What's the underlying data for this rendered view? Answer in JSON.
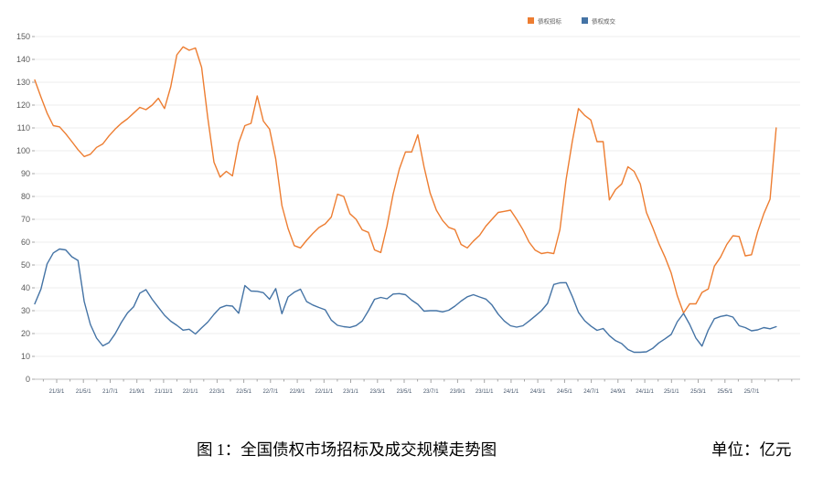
{
  "figure": {
    "caption": "图 1：全国债权市场招标及成交规模走势图",
    "unit_label": "单位：亿元"
  },
  "chart_data": {
    "type": "line",
    "title": "",
    "legend_position": "top",
    "grid": true,
    "x_axis": {
      "unit": "date (yy/m/d)",
      "note": "x encoded as months since 2021-01-01; labeled ticks every 2 months, minor ticks monthly",
      "tick_months_since_2021_01": [
        2,
        4,
        6,
        8,
        10,
        12,
        14,
        16,
        18,
        20,
        22,
        24,
        26,
        28,
        30,
        32,
        34,
        36,
        38,
        40,
        42,
        44,
        46,
        48,
        50,
        52,
        54
      ],
      "tick_labels": [
        "21/3/1",
        "21/5/1",
        "21/7/1",
        "21/9/1",
        "21/11/1",
        "22/1/1",
        "22/3/1",
        "22/5/1",
        "22/7/1",
        "22/9/1",
        "22/11/1",
        "23/1/1",
        "23/3/1",
        "23/5/1",
        "23/7/1",
        "23/9/1",
        "23/11/1",
        "24/1/1",
        "24/3/1",
        "24/5/1",
        "24/7/1",
        "24/9/1",
        "24/11/1",
        "25/1/1",
        "25/3/1",
        "25/5/1",
        "25/7/1"
      ]
    },
    "y_axis": {
      "min": 0,
      "max": 150,
      "tick_step": 10,
      "unit": "亿元",
      "tick_labels": [
        "0",
        "10",
        "20",
        "30",
        "40",
        "50",
        "60",
        "70",
        "80",
        "90",
        "100",
        "110",
        "120",
        "130",
        "140",
        "150"
      ]
    },
    "series": [
      {
        "name": "债权招标",
        "color": "#ED7D31",
        "t_start_months": 0.36,
        "t_step_months": 0.4623,
        "values": [
          131,
          123.5,
          116.5,
          111,
          110.5,
          107.5,
          104,
          100.5,
          97.5,
          98.5,
          101.5,
          103,
          106.5,
          109.5,
          112,
          114,
          116.5,
          119,
          118,
          120,
          123,
          118.5,
          128,
          142,
          145.5,
          144,
          145,
          136.5,
          114.5,
          95,
          88.5,
          91,
          89,
          103.5,
          111,
          112,
          124,
          113,
          109.5,
          96.5,
          76,
          66,
          58.5,
          57.5,
          60.8,
          63.8,
          66.4,
          68,
          71,
          81,
          80,
          72.5,
          70,
          65.4,
          64.3,
          56.6,
          55.5,
          67,
          81,
          92,
          99.5,
          99.5,
          107,
          93,
          81.5,
          74,
          69.5,
          66.5,
          65.5,
          59,
          57.5,
          60.5,
          63,
          67,
          70,
          73,
          73.5,
          74,
          70,
          65.5,
          60,
          56.5,
          55,
          55.5,
          55,
          65.5,
          87.5,
          104,
          118.5,
          115.5,
          113.5,
          104,
          104,
          78.5,
          83,
          85.5,
          93,
          91,
          85.5,
          73,
          66.5,
          59.5,
          53.5,
          46.5,
          36.5,
          29,
          33,
          33,
          38,
          39.5,
          49.5,
          53.5,
          59,
          62.8,
          62.5,
          54,
          54.5,
          64.5,
          72.5,
          78.8,
          110
        ]
      },
      {
        "name": "债权成交",
        "color": "#4473A5",
        "t_start_months": 0.36,
        "t_step_months": 0.4623,
        "values": [
          33,
          39.5,
          50.5,
          55.3,
          57,
          56.6,
          53.6,
          52,
          34,
          24,
          18,
          14.6,
          16,
          19.9,
          24.8,
          29,
          31.7,
          37.7,
          39.2,
          35,
          31.5,
          28,
          25.4,
          23.6,
          21.5,
          21.9,
          19.8,
          22.5,
          25,
          28.4,
          31.3,
          32.3,
          32,
          28.9,
          41,
          38.6,
          38.5,
          37.9,
          35,
          39.7,
          28.7,
          36,
          38.1,
          39.4,
          34,
          32.5,
          31.4,
          30.4,
          25.9,
          23.6,
          23,
          22.7,
          23.5,
          25.5,
          30,
          35,
          35.8,
          35.2,
          37.3,
          37.5,
          37,
          34.6,
          32.8,
          29.8,
          30,
          30,
          29.5,
          30.2,
          32,
          34.2,
          36.1,
          37,
          36,
          35.1,
          32.5,
          28.5,
          25.5,
          23.4,
          22.8,
          23.4,
          25.5,
          27.7,
          30,
          33.2,
          41.5,
          42.2,
          42.3,
          36.3,
          29.3,
          25.6,
          23.3,
          21.4,
          22.2,
          19.1,
          16.9,
          15.6,
          13,
          11.8,
          11.8,
          12,
          13.5,
          15.9,
          17.7,
          19.6,
          25.2,
          28.8,
          24,
          18,
          14.5,
          21.5,
          26.5,
          27.5,
          28,
          27.2,
          23.4,
          22.6,
          21.2,
          21.6,
          22.6,
          22.1,
          23
        ]
      }
    ],
    "style_colors": {
      "gridline": "#ececec",
      "axis_line": "#bfbfbf",
      "tick_mark": "#a6a6a6",
      "y_label": "#595959",
      "x_label": "#44546a",
      "legend_text": "#595959"
    }
  }
}
